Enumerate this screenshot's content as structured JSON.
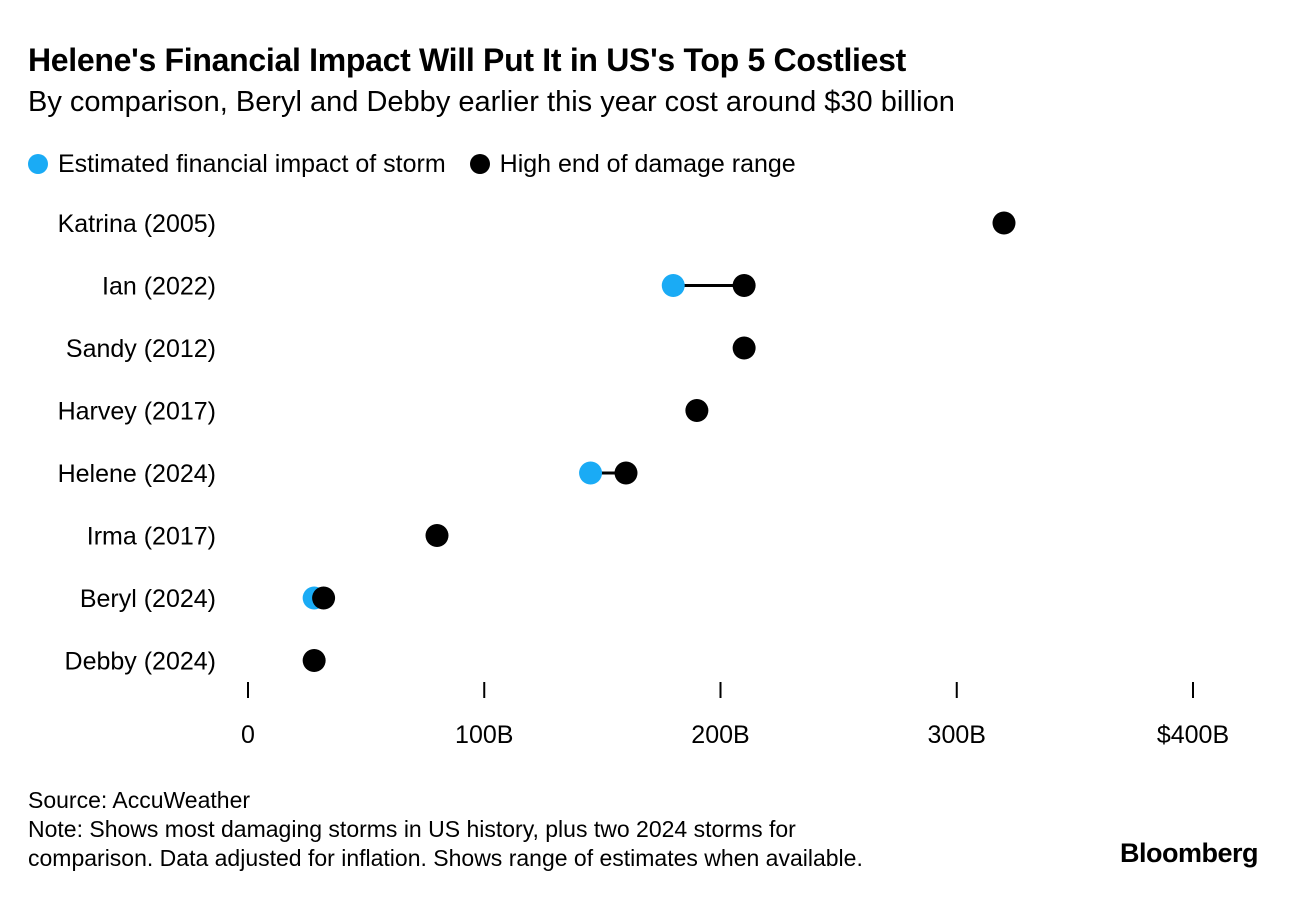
{
  "title": "Helene's Financial Impact Will Put It in US's Top 5 Costliest",
  "subtitle": "By comparison, Beryl and Debby earlier this year cost around $30 billion",
  "colors": {
    "estimate": "#1aabf5",
    "high_end": "#000000",
    "connector": "#000000"
  },
  "legend": [
    {
      "label": "Estimated financial impact of storm",
      "color": "#1aabf5"
    },
    {
      "label": "High end of damage range",
      "color": "#000000"
    }
  ],
  "chart_data": {
    "type": "dumbbell",
    "xlim": [
      0,
      400
    ],
    "x_ticks": [
      0,
      100,
      200,
      300,
      400
    ],
    "x_tick_labels": [
      "0",
      "100B",
      "200B",
      "300B",
      "$400B"
    ],
    "grid": false,
    "legend_position": "top-left",
    "categories": [
      "Katrina (2005)",
      "Ian (2022)",
      "Sandy (2012)",
      "Harvey (2017)",
      "Helene (2024)",
      "Irma (2017)",
      "Beryl (2024)",
      "Debby (2024)"
    ],
    "series": [
      {
        "name": "Estimated financial impact of storm",
        "values": [
          null,
          180,
          null,
          null,
          145,
          null,
          28,
          null
        ]
      },
      {
        "name": "High end of damage range",
        "values": [
          320,
          210,
          210,
          190,
          160,
          80,
          32,
          28
        ]
      }
    ]
  },
  "footer": {
    "source": "Source: AccuWeather",
    "note_line1": "Note: Shows most damaging storms in US history, plus two 2024 storms for",
    "note_line2": "comparison. Data adjusted for inflation. Shows range of estimates when available."
  },
  "brand": "Bloomberg"
}
